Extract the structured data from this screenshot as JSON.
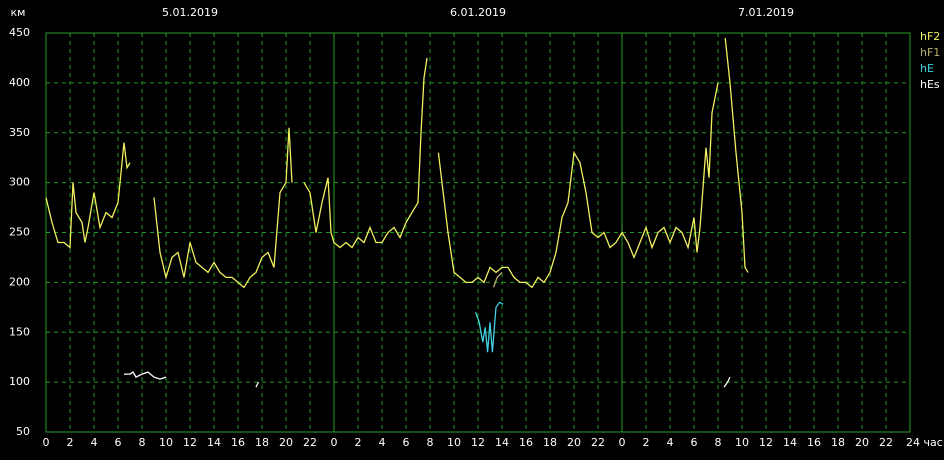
{
  "chart_data": {
    "type": "line",
    "y_label": "км",
    "date_labels": [
      {
        "x": 12,
        "label": "5.01.2019"
      },
      {
        "x": 36,
        "label": "6.01.2019"
      },
      {
        "x": 60,
        "label": "7.01.2019"
      }
    ],
    "xlim": [
      0,
      72
    ],
    "xticks": [
      0,
      2,
      4,
      6,
      8,
      10,
      12,
      14,
      16,
      18,
      20,
      22,
      {
        "value": 24,
        "label": "0"
      },
      {
        "value": 26,
        "label": "2"
      },
      {
        "value": 28,
        "label": "4"
      },
      {
        "value": 30,
        "label": "6"
      },
      {
        "value": 32,
        "label": "8"
      },
      {
        "value": 34,
        "label": "10"
      },
      {
        "value": 36,
        "label": "12"
      },
      {
        "value": 38,
        "label": "14"
      },
      {
        "value": 40,
        "label": "16"
      },
      {
        "value": 42,
        "label": "18"
      },
      {
        "value": 44,
        "label": "20"
      },
      {
        "value": 46,
        "label": "22"
      },
      {
        "value": 48,
        "label": "0"
      },
      {
        "value": 50,
        "label": "2"
      },
      {
        "value": 52,
        "label": "4"
      },
      {
        "value": 54,
        "label": "6"
      },
      {
        "value": 56,
        "label": "8"
      },
      {
        "value": 58,
        "label": "10"
      },
      {
        "value": 60,
        "label": "12"
      },
      {
        "value": 62,
        "label": "14"
      },
      {
        "value": 64,
        "label": "16"
      },
      {
        "value": 66,
        "label": "18"
      },
      {
        "value": 68,
        "label": "20"
      },
      {
        "value": 70,
        "label": "22"
      },
      {
        "value": 72,
        "label": "24 час."
      }
    ],
    "ylim": [
      50,
      450
    ],
    "yticks": [
      50,
      100,
      150,
      200,
      250,
      300,
      350,
      400,
      450
    ],
    "grid": true,
    "series": [
      {
        "name": "hF2",
        "color": "#f0f060",
        "x": [
          0,
          0.5,
          1,
          1.5,
          2,
          2.25,
          2.5,
          3,
          3.25,
          3.5,
          4,
          4.5,
          5,
          5.5,
          6,
          6.5,
          6.75,
          7,
          8,
          9,
          9.5,
          10,
          10.5,
          11,
          11.5,
          12,
          12.5,
          13,
          13.5,
          14,
          14.5,
          15,
          15.5,
          16,
          16.5,
          17,
          17.5,
          18,
          18.5,
          19,
          19.5,
          20,
          20.25,
          20.5,
          21,
          21.5,
          22,
          22.5,
          23,
          23.5,
          23.75,
          24,
          24.5,
          25,
          25.5,
          26,
          26.5,
          27,
          27.5,
          28,
          28.5,
          29,
          29.5,
          30,
          30.5,
          31,
          31.25,
          31.5,
          31.75,
          32.3,
          32.7,
          33.5,
          34,
          34.5,
          35,
          35.5,
          36,
          36.5,
          37,
          37.5,
          38,
          38.5,
          39,
          39.5,
          40,
          40.5,
          41,
          41.5,
          42,
          42.5,
          43,
          43.5,
          44,
          44.5,
          45,
          45.5,
          46,
          46.5,
          47,
          47.5,
          48,
          48.5,
          49,
          49.5,
          50,
          50.5,
          51,
          51.5,
          52,
          52.5,
          53,
          53.5,
          54,
          54.25,
          54.5,
          55,
          55.25,
          55.5,
          56,
          56.3,
          56.6,
          57,
          57.5,
          58,
          58.25,
          58.5
        ],
        "values": [
          285,
          260,
          240,
          240,
          235,
          300,
          270,
          260,
          240,
          255,
          290,
          255,
          270,
          265,
          280,
          340,
          315,
          320,
          null,
          285,
          230,
          205,
          225,
          230,
          205,
          240,
          220,
          215,
          210,
          220,
          210,
          205,
          205,
          200,
          195,
          205,
          210,
          225,
          230,
          215,
          290,
          300,
          355,
          300,
          null,
          300,
          290,
          250,
          280,
          305,
          250,
          240,
          235,
          240,
          235,
          245,
          240,
          255,
          240,
          240,
          250,
          255,
          245,
          260,
          270,
          280,
          350,
          405,
          425,
          null,
          330,
          250,
          210,
          205,
          200,
          200,
          205,
          200,
          215,
          210,
          215,
          215,
          205,
          200,
          200,
          195,
          205,
          200,
          210,
          230,
          265,
          280,
          330,
          320,
          290,
          250,
          245,
          250,
          235,
          240,
          250,
          240,
          225,
          240,
          255,
          235,
          250,
          255,
          240,
          255,
          250,
          235,
          265,
          230,
          255,
          335,
          305,
          370,
          400,
          null,
          445,
          400,
          330,
          270,
          215,
          210
        ]
      },
      {
        "name": "hF1",
        "color": "#b8b070",
        "x": [
          37.3,
          37.6,
          38
        ],
        "values": [
          195,
          205,
          210
        ]
      },
      {
        "name": "hE",
        "color": "#40d0e0",
        "x": [
          35.8,
          36.1,
          36.4,
          36.6,
          36.8,
          37,
          37.2,
          37.5,
          37.8,
          38.1
        ],
        "values": [
          170,
          160,
          140,
          155,
          130,
          160,
          130,
          175,
          180,
          178
        ]
      },
      {
        "name": "hEs",
        "color": "#ffffff",
        "x": [
          6.5,
          7,
          7.25,
          7.5,
          8,
          8.5,
          9,
          9.5,
          10,
          10.2,
          17.5,
          17.7,
          17.8,
          56.5,
          56.8,
          57
        ],
        "values": [
          108,
          108,
          110,
          105,
          108,
          110,
          105,
          103,
          105,
          null,
          95,
          100,
          null,
          95,
          100,
          105
        ]
      }
    ]
  }
}
